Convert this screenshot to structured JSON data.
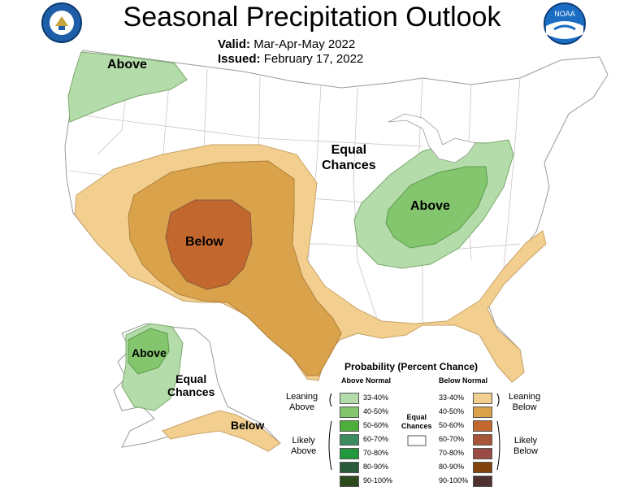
{
  "header": {
    "title": "Seasonal Precipitation Outlook",
    "valid_label": "Valid:",
    "valid_value": "Mar-Apr-May 2022",
    "issued_label": "Issued:",
    "issued_value": "February 17, 2022"
  },
  "logos": {
    "left": "department-of-commerce-seal",
    "right_text": "NOAA"
  },
  "map_labels": {
    "above_pacific_nw": "Above",
    "equal_chances_central": "Equal\nChances",
    "above_ohio_valley": "Above",
    "below_southwest": "Below",
    "above_alaska": "Above",
    "equal_chances_alaska": "Equal\nChances",
    "below_alaska": "Below"
  },
  "legend": {
    "title": "Probability (Percent Chance)",
    "above_header": "Above Normal",
    "below_header": "Below Normal",
    "equal_label": "Equal\nChances",
    "left_groups": {
      "leaning": "Leaning\nAbove",
      "likely": "Likely\nAbove"
    },
    "right_groups": {
      "leaning": "Leaning\nBelow",
      "likely": "Likely\nBelow"
    },
    "above": [
      {
        "range": "33-40%",
        "color": "#b4dcaa"
      },
      {
        "range": "40-50%",
        "color": "#83c66e"
      },
      {
        "range": "50-60%",
        "color": "#4eae3a"
      },
      {
        "range": "60-70%",
        "color": "#3b8a60"
      },
      {
        "range": "70-80%",
        "color": "#22993e"
      },
      {
        "range": "80-90%",
        "color": "#2b5a3a"
      },
      {
        "range": "90-100%",
        "color": "#2d4a1c"
      }
    ],
    "below": [
      {
        "range": "33-40%",
        "color": "#f2cf8e"
      },
      {
        "range": "40-50%",
        "color": "#d9a24b"
      },
      {
        "range": "50-60%",
        "color": "#c2682f"
      },
      {
        "range": "60-70%",
        "color": "#a65538"
      },
      {
        "range": "70-80%",
        "color": "#9a4b45"
      },
      {
        "range": "80-90%",
        "color": "#82440e"
      },
      {
        "range": "90-100%",
        "color": "#4f3031"
      }
    ]
  }
}
